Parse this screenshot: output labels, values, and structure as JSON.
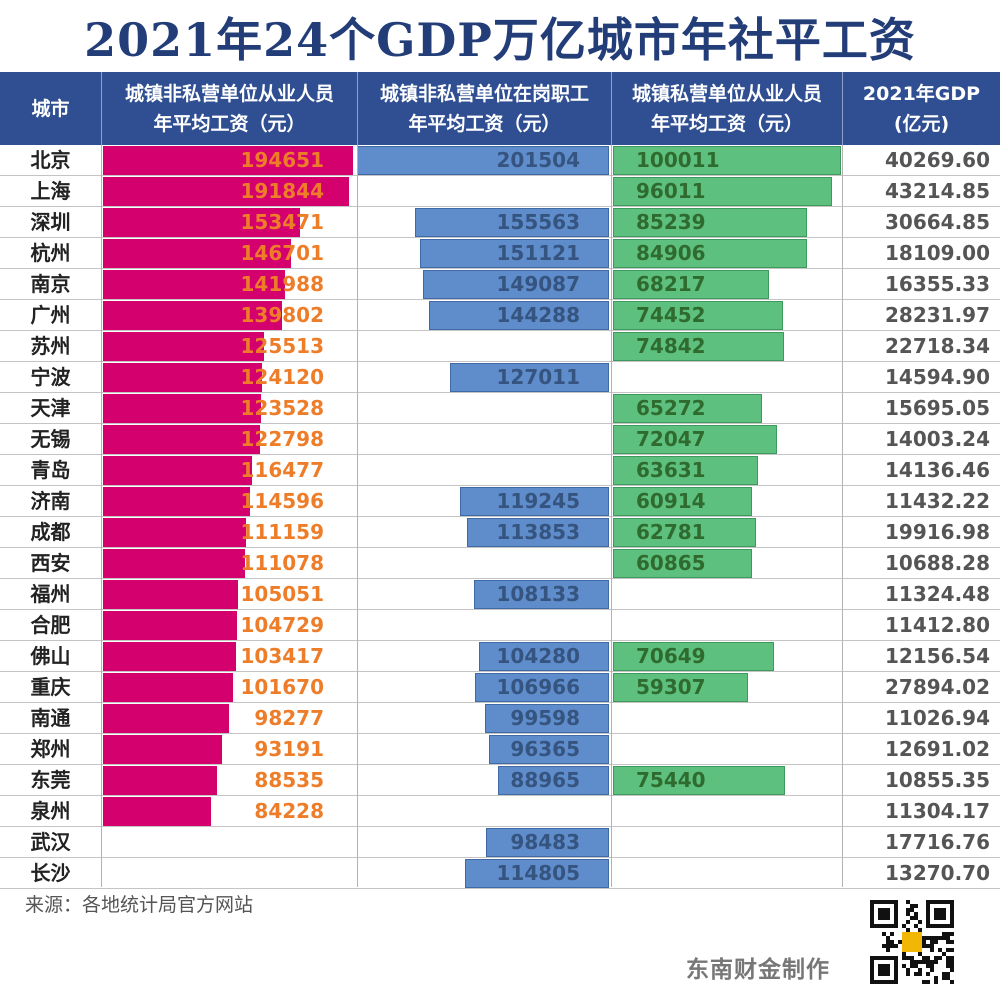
{
  "title": "2021年24个GDP万亿城市年社平工资",
  "header": {
    "city": "城市",
    "col1": [
      "城镇非私营单位从业人员",
      "年平均工资（元）"
    ],
    "col2": [
      "城镇非私营单位在岗职工",
      "年平均工资（元）"
    ],
    "col3": [
      "城镇私营单位从业人员",
      "年平均工资（元）"
    ],
    "col4": [
      "2021年GDP",
      "(亿元)"
    ]
  },
  "source": "来源：各地统计局官方网站",
  "credit": "东南财金制作",
  "colors": {
    "header_bg": "#2f4f92",
    "title": "#223d78",
    "bar_nonprivate_employee": "#d4006e",
    "bar_nonprivate_onpost": "#5f8ccb",
    "bar_private": "#5dc07e",
    "label_nonprivate_employee": "#ee7d2a"
  },
  "chart_data": {
    "type": "table",
    "categories": [
      "北京",
      "上海",
      "深圳",
      "杭州",
      "南京",
      "广州",
      "苏州",
      "宁波",
      "天津",
      "无锡",
      "青岛",
      "济南",
      "成都",
      "西安",
      "福州",
      "合肥",
      "佛山",
      "重庆",
      "南通",
      "郑州",
      "东莞",
      "泉州",
      "武汉",
      "长沙"
    ],
    "series": [
      {
        "name": "城镇非私营单位从业人员年平均工资（元）",
        "values": [
          194651,
          191844,
          153471,
          146701,
          141988,
          139802,
          125513,
          124120,
          123528,
          122798,
          116477,
          114596,
          111159,
          111078,
          105051,
          104729,
          103417,
          101670,
          98277,
          93191,
          88535,
          84228,
          null,
          null
        ]
      },
      {
        "name": "城镇非私营单位在岗职工年平均工资（元）",
        "values": [
          201504,
          null,
          155563,
          151121,
          149087,
          144288,
          null,
          127011,
          null,
          null,
          null,
          119245,
          113853,
          null,
          108133,
          null,
          104280,
          106966,
          99598,
          96365,
          88965,
          null,
          98483,
          114805
        ]
      },
      {
        "name": "城镇私营单位从业人员年平均工资（元）",
        "values": [
          100011,
          96011,
          85239,
          84906,
          68217,
          74452,
          74842,
          null,
          65272,
          72047,
          63631,
          60914,
          62781,
          60865,
          null,
          null,
          70649,
          59307,
          null,
          null,
          75440,
          null,
          null,
          null
        ]
      },
      {
        "name": "2021年GDP(亿元)",
        "values": [
          "40269.60",
          "43214.85",
          "30664.85",
          "18109.00",
          "16355.33",
          "28231.97",
          "22718.34",
          "14594.90",
          "15695.05",
          "14003.24",
          "14136.46",
          "11432.22",
          "19916.98",
          "10688.28",
          "11324.48",
          "11412.80",
          "12156.54",
          "27894.02",
          "11026.94",
          "12691.02",
          "10855.35",
          "11304.17",
          "17716.76",
          "13270.70"
        ]
      }
    ]
  }
}
